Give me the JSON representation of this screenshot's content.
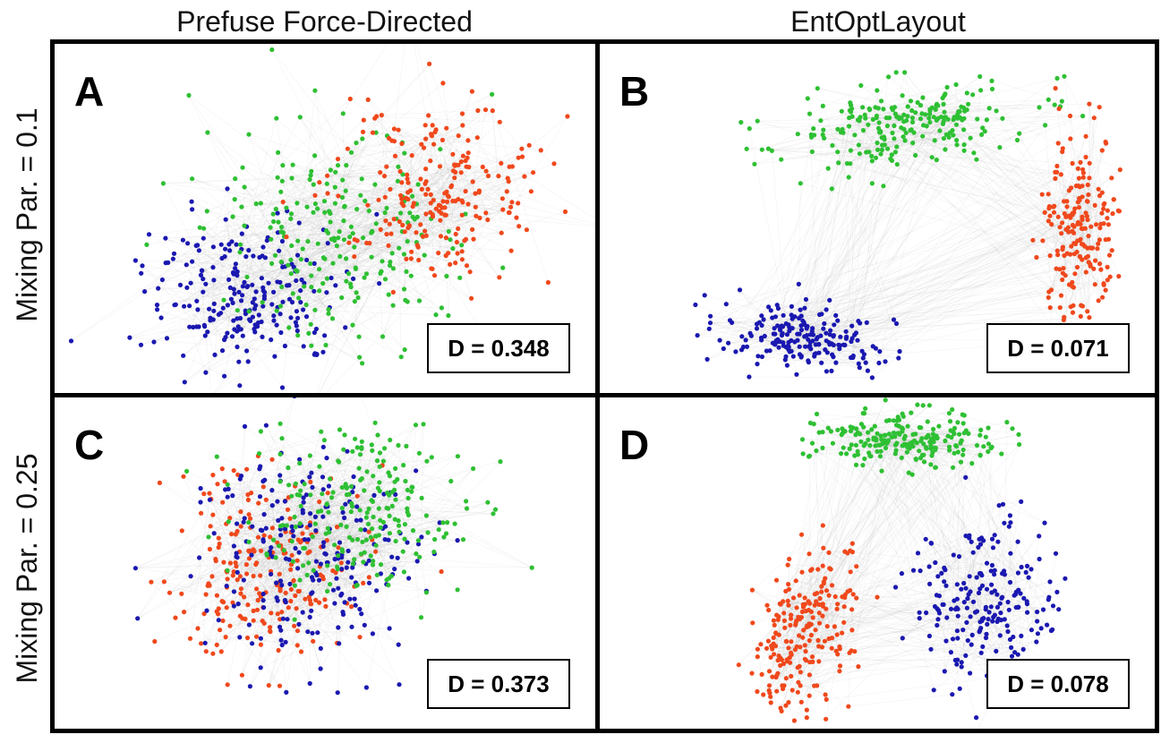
{
  "columns": [
    "Prefuse Force-Directed",
    "EntOptLayout"
  ],
  "rows": [
    "Mixing Par. = 0.1",
    "Mixing Par. = 0.25"
  ],
  "panels": [
    {
      "label": "A",
      "metric": "D = 0.348"
    },
    {
      "label": "B",
      "metric": "D = 0.071"
    },
    {
      "label": "C",
      "metric": "D = 0.373"
    },
    {
      "label": "D",
      "metric": "D = 0.078"
    }
  ],
  "colors": {
    "community_1": "#1a18b0",
    "community_2": "#2ec033",
    "community_3": "#f0481c",
    "edge": "#9a9a9a"
  }
}
